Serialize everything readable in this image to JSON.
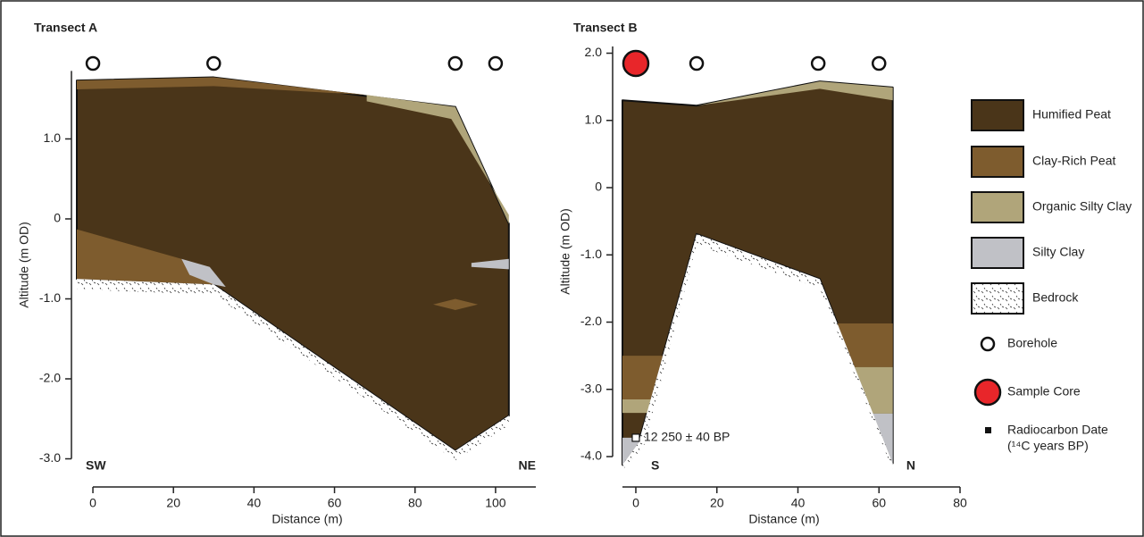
{
  "chart_data": [
    {
      "type": "section",
      "title": "Transect A",
      "xlabel": "Distance (m)",
      "ylabel": "Altitude (m OD)",
      "xlim": [
        -4,
        110
      ],
      "ylim": [
        -3.0,
        1.85
      ],
      "xticks": [
        0,
        20,
        40,
        60,
        80,
        100
      ],
      "yticks": [
        {
          "value": 1,
          "label": "1.0"
        },
        0,
        {
          "value": -1,
          "label": "-1.0"
        },
        {
          "value": -2,
          "label": "-2.0"
        },
        {
          "value": -3,
          "label": "-3.0"
        }
      ],
      "left_label": "SW",
      "right_label": "NE",
      "boreholes": [
        0,
        30,
        90,
        100
      ],
      "series": [
        {
          "name": "Humified Peat",
          "color": "#4a3519",
          "x": [
            -4,
            30,
            90,
            103.3,
            103.3,
            90,
            30,
            -4
          ],
          "y": [
            1.73,
            1.77,
            1.4,
            -0.06,
            -2.46,
            -2.9,
            -0.82,
            -0.75
          ]
        },
        {
          "name": "Clay-Rich Peat",
          "color": "#7e5c2e",
          "x": [
            -4,
            30,
            68,
            30,
            -4
          ],
          "y": [
            1.73,
            1.77,
            1.55,
            1.66,
            1.62
          ]
        },
        {
          "name": "Organic Silty Clay",
          "color": "#b0a57a",
          "x": [
            68,
            90,
            103.3,
            103.3,
            89,
            68
          ],
          "y": [
            1.55,
            1.4,
            -0.06,
            0.05,
            1.25,
            1.47
          ]
        },
        {
          "name": "Clay-Rich Peat",
          "color": "#7e5c2e",
          "x": [
            -4,
            22,
            30,
            -4
          ],
          "y": [
            -0.13,
            -0.5,
            -0.82,
            -0.75
          ]
        },
        {
          "name": "Silty Clay",
          "color": "#c0c1c6",
          "x": [
            22,
            29,
            33,
            30,
            24
          ],
          "y": [
            -0.5,
            -0.6,
            -0.85,
            -0.82,
            -0.7
          ]
        },
        {
          "name": "Silty Clay",
          "color": "#c0c1c6",
          "x": [
            94,
            103.3,
            103.3,
            94
          ],
          "y": [
            -0.55,
            -0.5,
            -0.63,
            -0.6
          ]
        },
        {
          "name": "Clay-Rich Peat",
          "color": "#7e5c2e",
          "x": [
            84.5,
            90,
            95.6,
            90
          ],
          "y": [
            -1.07,
            -1.0,
            -1.07,
            -1.14
          ]
        },
        {
          "name": "Bedrock",
          "color": "#ffffff",
          "x": [
            -4,
            30,
            90,
            103.3,
            103.3,
            90,
            30,
            -4
          ],
          "y": [
            -0.75,
            -0.82,
            -2.9,
            -2.46,
            -2.58,
            -3.02,
            -0.95,
            -0.88
          ]
        }
      ]
    },
    {
      "type": "section",
      "title": "Transect B",
      "xlabel": "Distance (m)",
      "ylabel": "Altitude (m OD)",
      "xlim": [
        -3.3,
        80
      ],
      "ylim": [
        -4.0,
        2.1
      ],
      "xticks": [
        0,
        20,
        40,
        60,
        80
      ],
      "yticks": [
        {
          "value": 2,
          "label": "2.0"
        },
        {
          "value": 1,
          "label": "1.0"
        },
        0,
        {
          "value": -1,
          "label": "-1.0"
        },
        {
          "value": -2,
          "label": "-2.0"
        },
        {
          "value": -3,
          "label": "-3.0"
        },
        {
          "value": -4,
          "label": "-4.0"
        }
      ],
      "left_label": "S",
      "right_label": "N",
      "sample_core": [
        0
      ],
      "boreholes": [
        15,
        45,
        60
      ],
      "dates": [
        {
          "x": 0,
          "y": -3.72,
          "label": "12 250 ± 40 BP"
        }
      ],
      "series": [
        {
          "name": "Humified Peat",
          "color": "#4a3519",
          "x": [
            -3.3,
            15,
            45.4,
            63.4,
            63.4,
            45.4,
            15,
            0.7,
            -3.3
          ],
          "y": [
            1.3,
            1.22,
            1.58,
            1.49,
            -4.1,
            -1.36,
            -0.69,
            -3.79,
            -4.12
          ]
        },
        {
          "name": "Organic Silty Clay",
          "color": "#b0a57a",
          "x": [
            15,
            45.4,
            63.4,
            63.4,
            45.4
          ],
          "y": [
            1.22,
            1.58,
            1.49,
            1.3,
            1.47
          ]
        },
        {
          "name": "Clay-Rich Peat",
          "color": "#7e5c2e",
          "x": [
            -3.3,
            6.65,
            3.65,
            -3.3
          ],
          "y": [
            -2.5,
            -2.5,
            -3.15,
            -3.15
          ]
        },
        {
          "name": "Organic Silty Clay",
          "color": "#b0a57a",
          "x": [
            -3.3,
            3.65,
            3.0,
            -3.3
          ],
          "y": [
            -3.15,
            -3.15,
            -3.35,
            -3.35
          ]
        },
        {
          "name": "Silty Clay",
          "color": "#c0c1c6",
          "x": [
            -3.3,
            1.0,
            0.7,
            -3.3
          ],
          "y": [
            -3.72,
            -3.72,
            -3.79,
            -4.12
          ]
        },
        {
          "name": "Clay-Rich Peat",
          "color": "#7e5c2e",
          "x": [
            49.7,
            63.4,
            63.4,
            54.0
          ],
          "y": [
            -2.02,
            -2.02,
            -2.67,
            -2.67
          ]
        },
        {
          "name": "Organic Silty Clay",
          "color": "#b0a57a",
          "x": [
            54.0,
            63.4,
            63.4,
            58.5
          ],
          "y": [
            -2.67,
            -2.67,
            -3.36,
            -3.36
          ]
        },
        {
          "name": "Silty Clay",
          "color": "#c0c1c6",
          "x": [
            58.5,
            63.4,
            63.4
          ],
          "y": [
            -3.36,
            -3.36,
            -4.1
          ]
        },
        {
          "name": "Bedrock",
          "color": "#ffffff",
          "x": [
            -3.3,
            0.7,
            15,
            45.4,
            63.4,
            63.4,
            45.4,
            15,
            2,
            -3.3
          ],
          "y": [
            -4.12,
            -3.79,
            -0.69,
            -1.36,
            -4.1,
            -4.2,
            -1.5,
            -0.85,
            -3.85,
            -4.2
          ]
        }
      ]
    }
  ],
  "legend": [
    {
      "name": "Humified Peat",
      "color": "#4a3519"
    },
    {
      "name": "Clay-Rich Peat",
      "color": "#7e5c2e"
    },
    {
      "name": "Organic Silty Clay",
      "color": "#b0a57a"
    },
    {
      "name": "Silty Clay",
      "color": "#c0c1c6"
    },
    {
      "name": "Bedrock",
      "color": "#ffffff"
    },
    {
      "name": "Borehole",
      "color": "#ffffff"
    },
    {
      "name": "Sample Core",
      "color": "#e8262a"
    },
    {
      "name": "Radiocarbon Date",
      "note": "(¹⁴C years BP)",
      "color": "#111111"
    }
  ]
}
